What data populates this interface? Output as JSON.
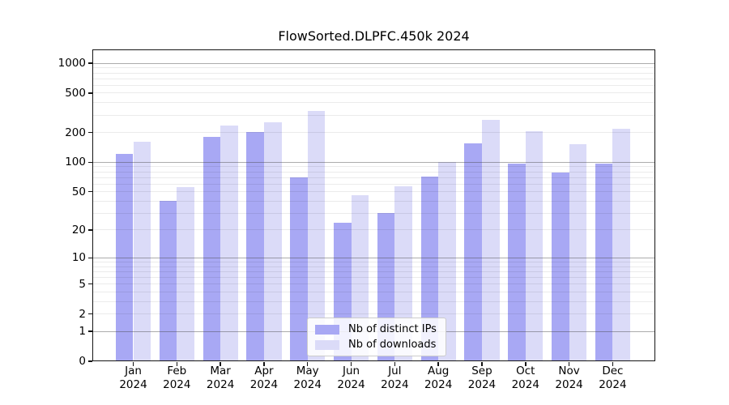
{
  "title": "FlowSorted.DLPFC.450k 2024",
  "chart_data": {
    "type": "bar",
    "title": "FlowSorted.DLPFC.450k 2024",
    "categories": [
      "Jan 2024",
      "Feb 2024",
      "Mar 2024",
      "Apr 2024",
      "May 2024",
      "Jun 2024",
      "Jul 2024",
      "Aug 2024",
      "Sep 2024",
      "Oct 2024",
      "Nov 2024",
      "Dec 2024"
    ],
    "series": [
      {
        "name": "Nb of distinct IPs",
        "color": "#a8a8f4",
        "values": [
          122,
          40,
          180,
          202,
          70,
          24,
          30,
          72,
          155,
          97,
          78,
          97
        ]
      },
      {
        "name": "Nb of downloads",
        "color": "#dbdbf8",
        "values": [
          160,
          56,
          235,
          255,
          330,
          46,
          57,
          100,
          270,
          205,
          153,
          220
        ]
      }
    ],
    "xlabel": "",
    "ylabel": "",
    "yscale": "log1p",
    "ylim": [
      0,
      1380
    ],
    "yticks": [
      1000,
      500,
      200,
      100,
      50,
      20,
      10,
      5,
      2,
      1,
      0
    ],
    "grid": "on (major decades dark, minor log subdivisions light)",
    "legend_position": "lower center"
  },
  "colors": {
    "background": "#ffffff",
    "spine": "#151515",
    "bar_distinct_ips": "#a8a8f4",
    "bar_downloads": "#dbdbf8"
  }
}
